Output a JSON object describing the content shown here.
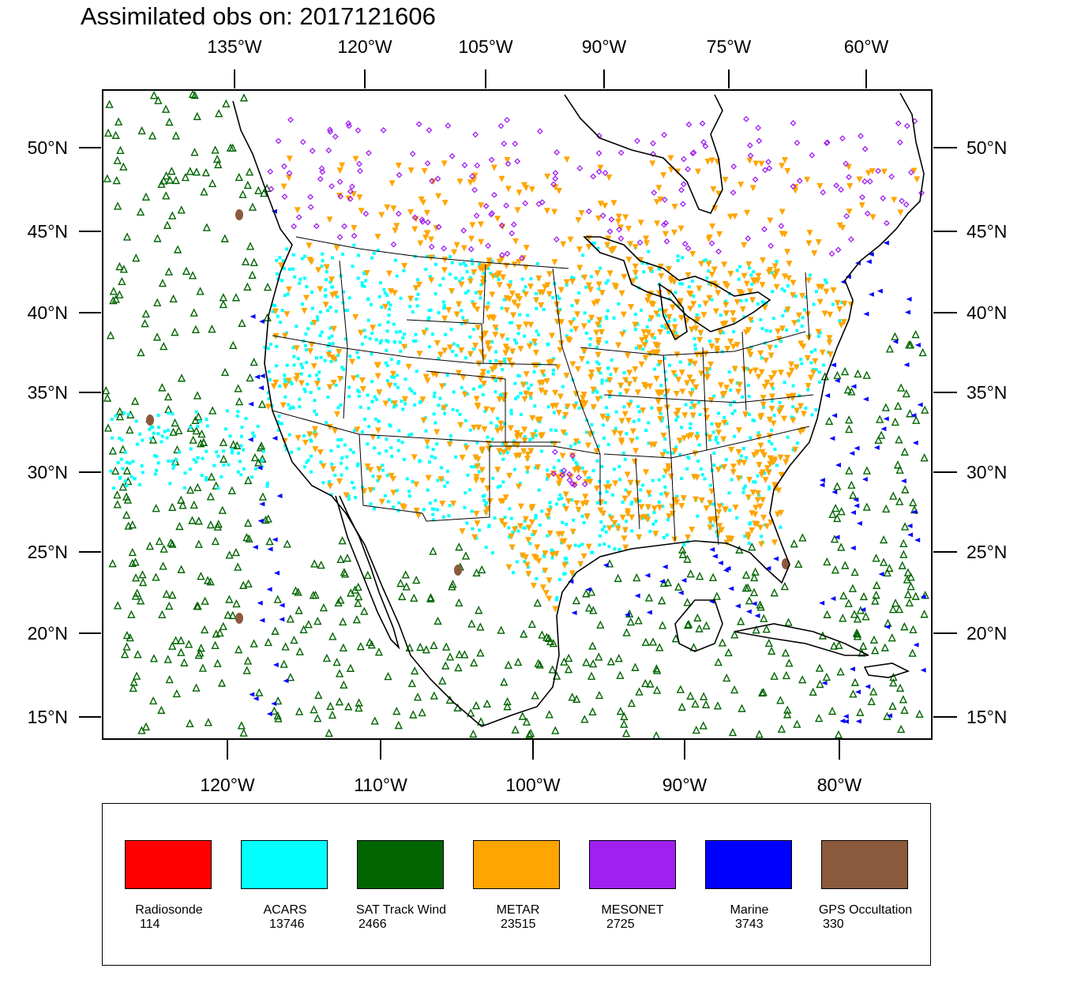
{
  "title": "Assimilated obs on: 2017121606",
  "axes": {
    "top_longitudes": [
      "135°W",
      "120°W",
      "105°W",
      "90°W",
      "75°W",
      "60°W"
    ],
    "bottom_longitudes": [
      "120°W",
      "110°W",
      "100°W",
      "90°W",
      "80°W"
    ],
    "left_latitudes": [
      "50°N",
      "45°N",
      "40°N",
      "35°N",
      "30°N",
      "25°N",
      "20°N",
      "15°N"
    ],
    "right_latitudes": [
      "50°N",
      "45°N",
      "40°N",
      "35°N",
      "30°N",
      "25°N",
      "20°N",
      "15°N"
    ]
  },
  "legend": [
    {
      "name": "Radiosonde",
      "count": "114",
      "color": "#ff0000"
    },
    {
      "name": "ACARS",
      "count": "13746",
      "color": "#00ffff"
    },
    {
      "name": "SAT Track Wind",
      "count": "2466",
      "color": "#006400"
    },
    {
      "name": "METAR",
      "count": "23515",
      "color": "#ffa500"
    },
    {
      "name": "MESONET",
      "count": "2725",
      "color": "#a020f0"
    },
    {
      "name": "Marine",
      "count": "3743",
      "color": "#0000ff"
    },
    {
      "name": "GPS Occultation",
      "count": "330",
      "color": "#8b5a3c"
    }
  ]
}
